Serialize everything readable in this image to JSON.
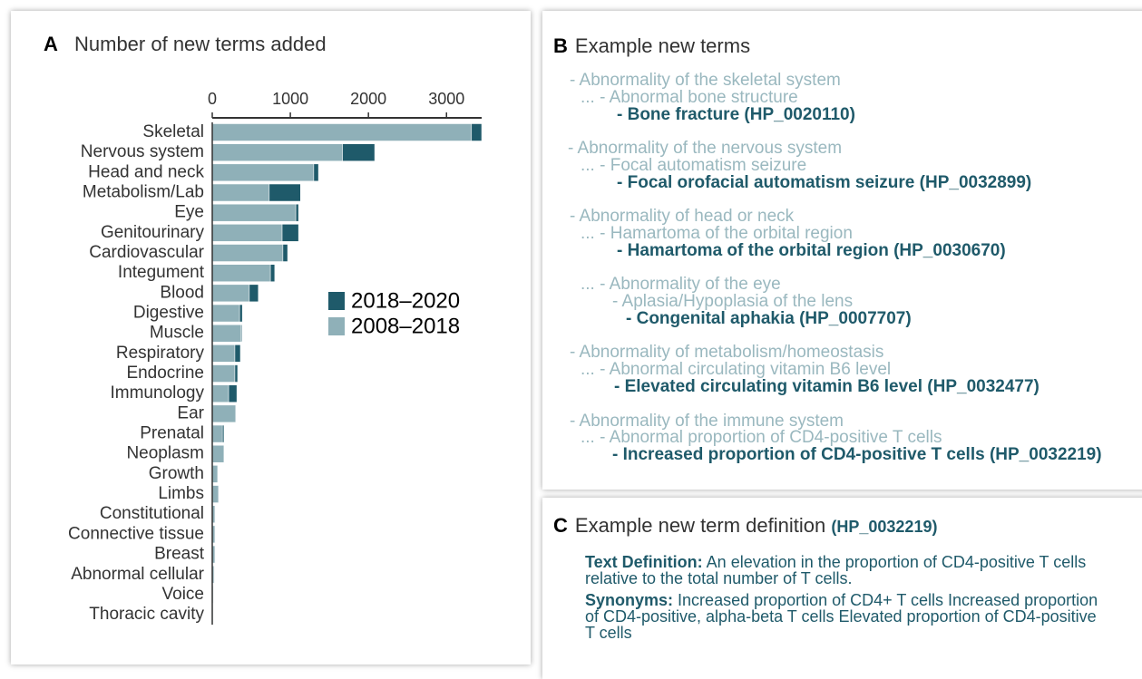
{
  "chart_data": {
    "type": "stacked_barh",
    "panel_label": "A",
    "title": "Number of new terms added",
    "categories": [
      "Skeletal",
      "Nervous system",
      "Head and neck",
      "Metabolism/Lab",
      "Eye",
      "Genitourinary",
      "Cardiovascular",
      "Integument",
      "Blood",
      "Digestive",
      "Muscle",
      "Respiratory",
      "Endocrine",
      "Immunology",
      "Ear",
      "Prenatal",
      "Neoplasm",
      "Growth",
      "Limbs",
      "Constitutional",
      "Connective tissue",
      "Breast",
      "Abnormal cellular",
      "Voice",
      "Thoracic cavity"
    ],
    "series": [
      {
        "name": "2008–2018",
        "color": "#8fb0b8",
        "values": [
          3320,
          1670,
          1300,
          730,
          1070,
          895,
          905,
          745,
          475,
          350,
          370,
          290,
          290,
          210,
          300,
          130,
          150,
          70,
          80,
          35,
          35,
          35,
          23,
          12,
          6
        ]
      },
      {
        "name": "2018–2020",
        "color": "#1f5a6a",
        "values": [
          130,
          410,
          60,
          400,
          35,
          210,
          60,
          55,
          115,
          35,
          10,
          70,
          35,
          105,
          5,
          20,
          5,
          3,
          3,
          2,
          2,
          2,
          2,
          1,
          1
        ]
      }
    ],
    "xlim": [
      0,
      3450
    ],
    "xticks": [
      0,
      1000,
      2000,
      3000
    ],
    "legend_position": "center right"
  },
  "panel_b": {
    "panel_label": "B",
    "title": "Example new terms",
    "groups": [
      {
        "lines": [
          "- Abnormality of the skeletal system",
          "... - Abnormal bone structure",
          "- Bone fracture (HP_0020110)"
        ]
      },
      {
        "lines": [
          "- Abnormality of the nervous system",
          "... - Focal automatism seizure",
          "- Focal orofacial automatism seizure (HP_0032899)"
        ]
      },
      {
        "lines": [
          "- Abnormality of head or neck",
          "... - Hamartoma of the orbital region",
          "- Hamartoma of the orbital region (HP_0030670)"
        ]
      },
      {
        "lines": [
          "... - Abnormality of the eye",
          "- Aplasia/Hypoplasia of the lens",
          "- Congenital aphakia (HP_0007707)"
        ]
      },
      {
        "lines": [
          "- Abnormality of metabolism/homeostasis",
          "... - Abnormal circulating vitamin B6 level",
          "- Elevated circulating vitamin B6 level (HP_0032477)"
        ]
      },
      {
        "lines": [
          "- Abnormality of the immune system",
          "... - Abnormal proportion of CD4-positive T cells",
          "- Increased proportion of CD4-positive T cells (HP_0032219)"
        ]
      }
    ]
  },
  "panel_c": {
    "panel_label": "C",
    "title": "Example new term definition",
    "term_id": "(HP_0032219)",
    "definition_label": "Text Definition:",
    "definition": "An elevation in the proportion of CD4-positive T cells relative to the total number of T cells.",
    "synonyms_label": "Synonyms:",
    "synonyms": "Increased proportion of CD4+ T cells Increased proportion of CD4-positive, alpha-beta T cells Elevated proportion of CD4-positive T cells"
  }
}
